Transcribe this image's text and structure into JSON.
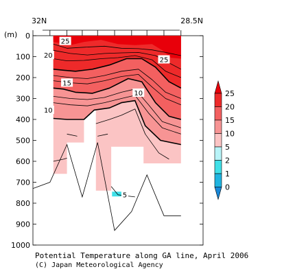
{
  "chart_data": {
    "type": "contour",
    "title": "Potential Temperature along GA line, April 2006",
    "credit": "(C) Japan Meteorological Agency",
    "x_axis": {
      "left_label": "32N",
      "right_label": "28.5N"
    },
    "y_axis": {
      "unit_label": "(m)",
      "ticks": [
        0,
        100,
        200,
        300,
        400,
        500,
        600,
        700,
        800,
        900,
        1000
      ],
      "range": [
        0,
        1000
      ]
    },
    "colorbar": {
      "levels": [
        0,
        1,
        2,
        5,
        10,
        15,
        20,
        25
      ],
      "tick_labels": [
        "0",
        "1",
        "2",
        "5",
        "10",
        "15",
        "20",
        "25"
      ],
      "bins": [
        {
          "from": 25,
          "to": null,
          "color": "#e8000a"
        },
        {
          "from": 20,
          "to": 25,
          "color": "#ee2a2a"
        },
        {
          "from": 15,
          "to": 20,
          "color": "#f36060"
        },
        {
          "from": 10,
          "to": 15,
          "color": "#f79494"
        },
        {
          "from": 5,
          "to": 10,
          "color": "#fbc4c4"
        },
        {
          "from": 2,
          "to": 5,
          "color": "#b8f4f8"
        },
        {
          "from": 1,
          "to": 2,
          "color": "#40e0e8"
        },
        {
          "from": 0,
          "to": 1,
          "color": "#20b4e0"
        },
        {
          "from": null,
          "to": 0,
          "color": "#1888d8"
        }
      ]
    },
    "contour_labels": [
      {
        "value": "25",
        "x": 0.19,
        "depth": 25
      },
      {
        "value": "20",
        "x": 0.09,
        "depth": 92
      },
      {
        "value": "25",
        "x": 0.77,
        "depth": 113
      },
      {
        "value": "15",
        "x": 0.2,
        "depth": 224
      },
      {
        "value": "10",
        "x": 0.62,
        "depth": 272
      },
      {
        "value": "10",
        "x": 0.09,
        "depth": 354
      },
      {
        "value": "5",
        "x": 0.54,
        "depth": 759
      }
    ],
    "bottom_profile": {
      "x": [
        0,
        0.1,
        0.2,
        0.29,
        0.38,
        0.48,
        0.58,
        0.67,
        0.77,
        0.87
      ],
      "depth": [
        730,
        700,
        520,
        770,
        510,
        930,
        840,
        665,
        860,
        860
      ]
    }
  }
}
